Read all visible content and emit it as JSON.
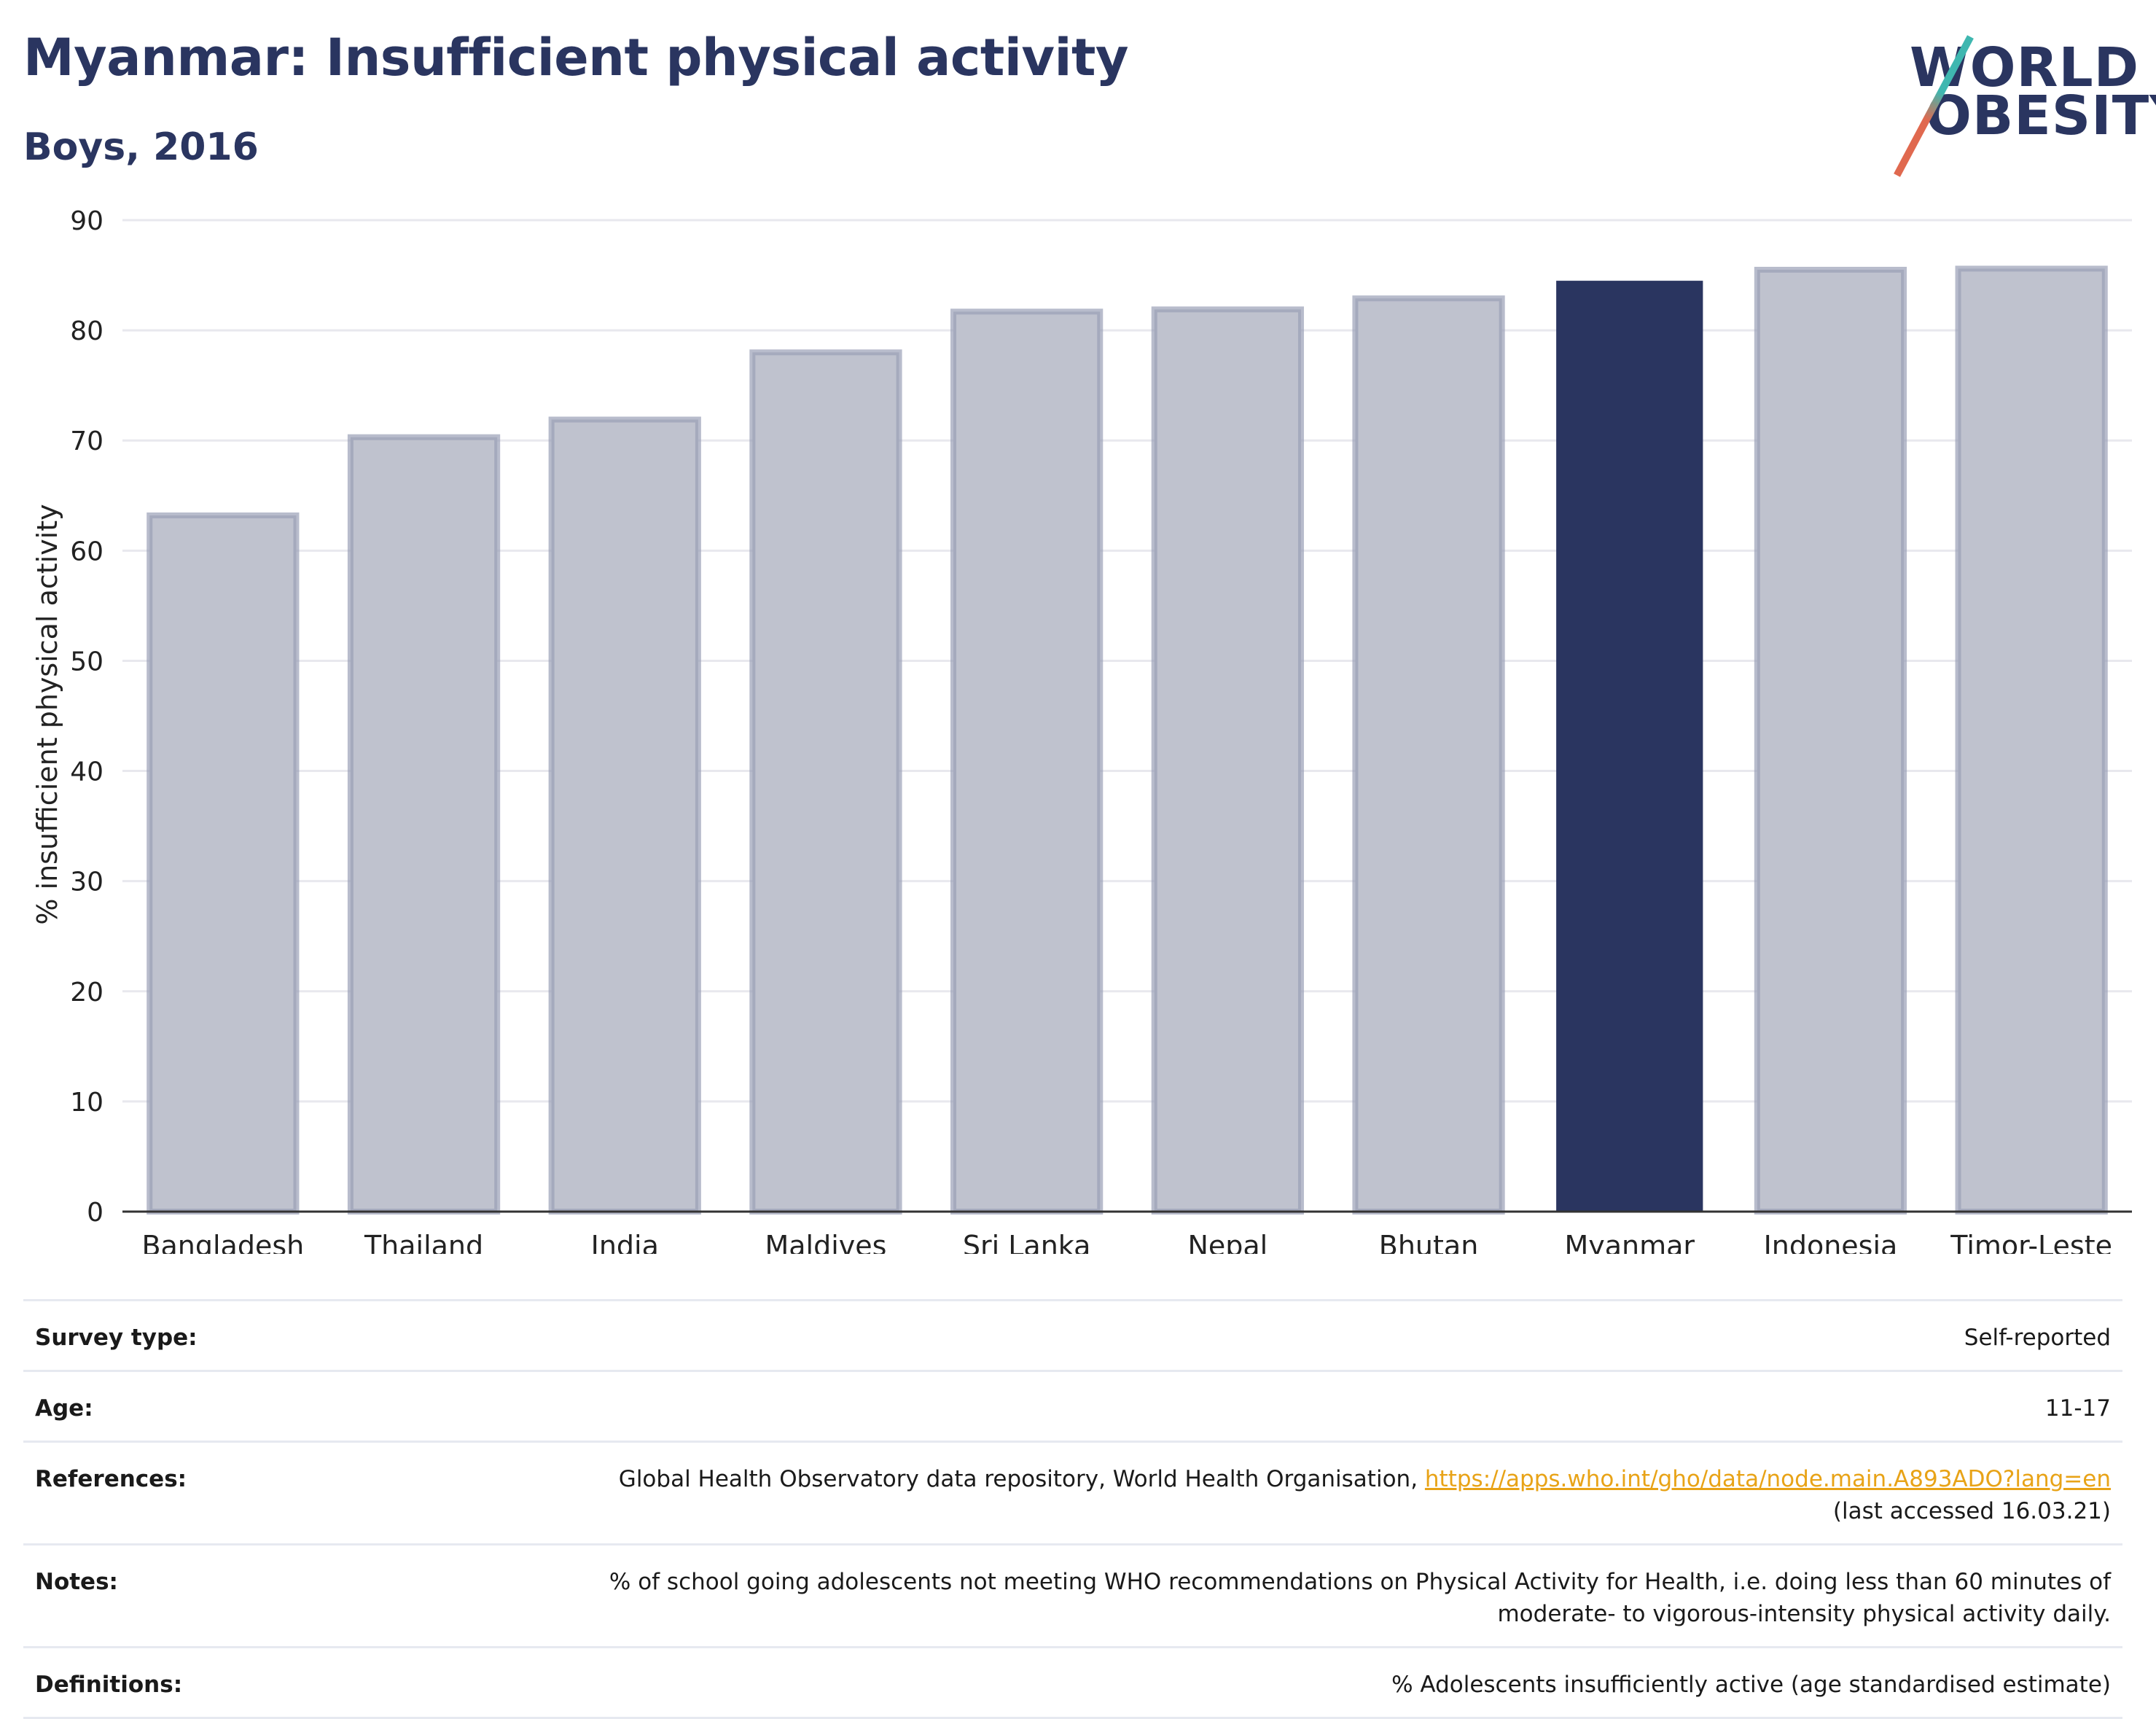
{
  "header": {
    "title": "Myanmar: Insufficient physical activity",
    "subtitle": "Boys, 2016"
  },
  "logo": {
    "line1": "WORLD",
    "line2": "OBESITY"
  },
  "colors": {
    "highlight": "#2a3560",
    "other": "#bfc2ce",
    "other_border": "#9aa0b6",
    "axis": "#333333",
    "grid": "#e8e8ee"
  },
  "chart_data": {
    "type": "bar",
    "categories": [
      "Bangladesh",
      "Thailand",
      "India",
      "Maldives",
      "Sri Lanka",
      "Nepal",
      "Bhutan",
      "Myanmar",
      "Indonesia",
      "Timor-Leste"
    ],
    "values": [
      63.2,
      70.3,
      71.9,
      78.0,
      81.7,
      81.9,
      82.9,
      84.5,
      85.5,
      85.6
    ],
    "highlight": "Myanmar",
    "ylabel": "% insufficient physical activity",
    "xlabel": "",
    "ylim": [
      0,
      90
    ],
    "yticks": [
      0,
      10,
      20,
      30,
      40,
      50,
      60,
      70,
      80,
      90
    ],
    "grid": true
  },
  "table": {
    "rows": [
      {
        "label": "Survey type:",
        "value": "Self-reported"
      },
      {
        "label": "Age:",
        "value": "11-17"
      },
      {
        "label": "References:",
        "value": "Global Health Observatory data repository, World Health Organisation, ",
        "link": "https://apps.who.int/gho/data/node.main.A893ADO?lang=en",
        "value2": "(last accessed 16.03.21)"
      },
      {
        "label": "Notes:",
        "value": "% of school going adolescents not meeting WHO recommendations on Physical Activity for Health, i.e. doing less than 60 minutes of moderate- to vigorous-intensity physical activity daily."
      },
      {
        "label": "Definitions:",
        "value": "% Adolescents insufficiently active (age standardised estimate)"
      }
    ]
  }
}
